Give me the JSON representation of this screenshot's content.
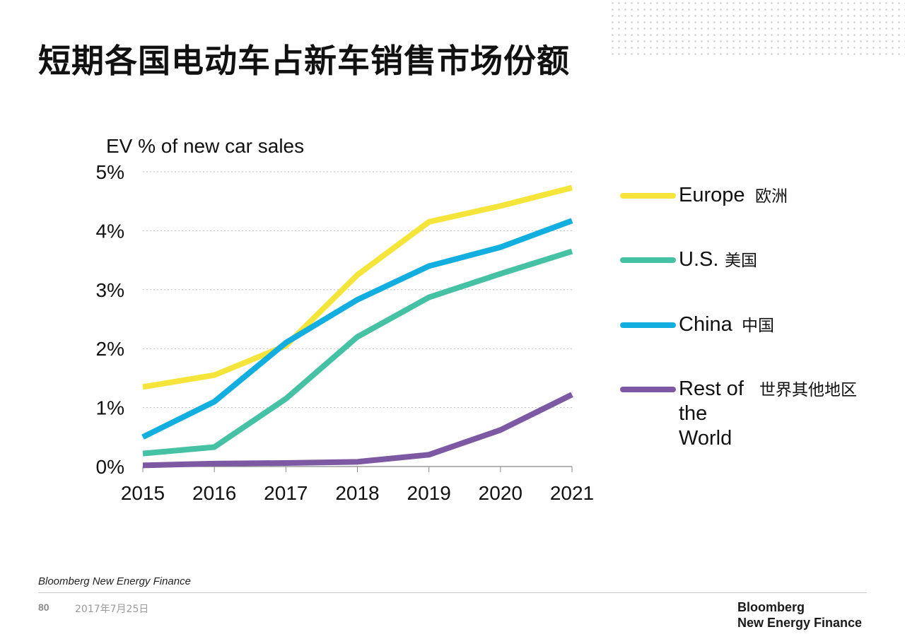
{
  "slide": {
    "title": "短期各国电动车占新车销售市场份额",
    "source": "Bloomberg New Energy Finance",
    "page_number": "80",
    "date": "2017年7月25日",
    "brand_line1": "Bloomberg",
    "brand_line2": "New Energy Finance"
  },
  "chart_data": {
    "type": "line",
    "title": "",
    "ylabel": "EV % of new car sales",
    "xlabel": "",
    "x": [
      "2015",
      "2016",
      "2017",
      "2018",
      "2019",
      "2020",
      "2021"
    ],
    "ylim": [
      0,
      5
    ],
    "yticks": [
      "0%",
      "1%",
      "2%",
      "3%",
      "4%",
      "5%"
    ],
    "grid": true,
    "legend_position": "right",
    "series": [
      {
        "name": "Europe",
        "name_cn": "欧洲",
        "color": "#f5e53b",
        "values": [
          1.35,
          1.55,
          2.05,
          3.25,
          4.15,
          4.42,
          4.73
        ]
      },
      {
        "name": "U.S.",
        "name_cn": "美国",
        "color": "#45c1a4",
        "values": [
          0.22,
          0.33,
          1.15,
          2.2,
          2.87,
          3.27,
          3.65
        ]
      },
      {
        "name": "China",
        "name_cn": "中国",
        "color": "#13aee0",
        "values": [
          0.5,
          1.1,
          2.1,
          2.83,
          3.4,
          3.72,
          4.17
        ]
      },
      {
        "name": "Rest of the World",
        "name_cn": "世界其他地区",
        "color": "#7d58a3",
        "values": [
          0.02,
          0.05,
          0.06,
          0.08,
          0.2,
          0.62,
          1.22
        ]
      }
    ]
  }
}
